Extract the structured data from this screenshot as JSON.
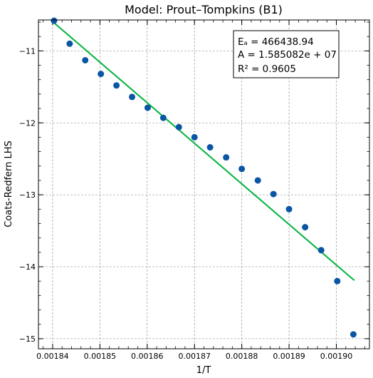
{
  "chart_data": {
    "type": "scatter",
    "title": "Model: Prout–Tompkins (B1)",
    "xlabel": "1/T",
    "ylabel": "Coats-Redfern LHS",
    "xlim": [
      0.001837,
      0.001907
    ],
    "ylim": [
      -15.14,
      -10.57
    ],
    "xticks": [
      0.00184,
      0.00185,
      0.00186,
      0.00187,
      0.00188,
      0.00189,
      0.0019
    ],
    "xtick_labels": [
      "0.00184",
      "0.00185",
      "0.00186",
      "0.00187",
      "0.00188",
      "0.00189",
      "0.00190"
    ],
    "yticks": [
      -11,
      -12,
      -13,
      -14,
      -15
    ],
    "ytick_labels": [
      "−11",
      "−12",
      "−13",
      "−14",
      "−15"
    ],
    "grid": true,
    "series": [
      {
        "type": "scatter",
        "color": "#0a56a4",
        "x": [
          0.0018403,
          0.0018436,
          0.0018469,
          0.0018502,
          0.0018535,
          0.0018568,
          0.0018601,
          0.0018634,
          0.0018667,
          0.00187,
          0.0018733,
          0.0018767,
          0.00188,
          0.0018834,
          0.0018867,
          0.00189,
          0.0018934,
          0.0018968,
          0.0019002,
          0.0019036
        ],
        "y": [
          -10.58,
          -10.9,
          -11.13,
          -11.32,
          -11.48,
          -11.64,
          -11.79,
          -11.93,
          -12.06,
          -12.2,
          -12.34,
          -12.48,
          -12.64,
          -12.8,
          -12.99,
          -13.2,
          -13.45,
          -13.77,
          -14.2,
          -14.94
        ]
      },
      {
        "type": "line",
        "color": "#00b33c",
        "x": [
          0.0018403,
          0.0019038
        ],
        "y": [
          -10.61,
          -14.19
        ]
      }
    ],
    "annotation": {
      "lines": [
        "Eₐ = 466438.94",
        "A = 1.585082e + 07",
        "R² = 0.9605"
      ]
    }
  }
}
